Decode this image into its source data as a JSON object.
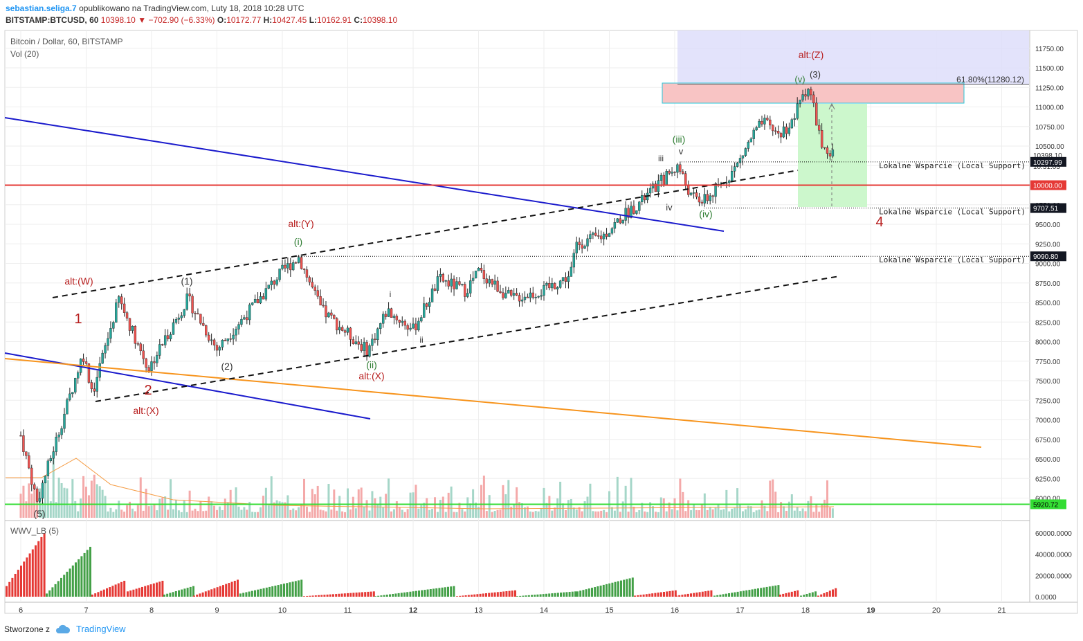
{
  "header": {
    "line1_user": "sebastian.seliga.7",
    "line1_rest": "opublikowano na TradingView.com, Luty 18, 2018 10:28 UTC",
    "symbol": "BITSTAMP:BTCUSD, 60",
    "last": "10398.10",
    "change": "−702.90 (−6.33%)",
    "open_label": "O:",
    "open": "10172.77",
    "high_label": "H:",
    "high": "10427.45",
    "low_label": "L:",
    "low": "10162.91",
    "close_label": "C:",
    "close": "10398.10"
  },
  "pane": {
    "title": "Bitcoin / Dollar, 60, BITSTAMP",
    "vol": "Vol (20)",
    "wwv": "WWV_LB (5)"
  },
  "footer": {
    "created": "Stworzone z",
    "brand": "TradingView"
  },
  "chart_data": {
    "type": "candlestick",
    "price_axis": [
      "11750.00",
      "11500.00",
      "11250.00",
      "11000.00",
      "10750.00",
      "10500.00",
      "10250.00",
      "10000.00",
      "9750.00",
      "9500.00",
      "9250.00",
      "9000.00",
      "8750.00",
      "8500.00",
      "8250.00",
      "8000.00",
      "7750.00",
      "7500.00",
      "7250.00",
      "7000.00",
      "6750.00",
      "6500.00",
      "6250.00",
      "6000.00"
    ],
    "ylim": [
      5900,
      12000
    ],
    "x_ticks": [
      "6",
      "7",
      "8",
      "9",
      "10",
      "11",
      "12",
      "13",
      "14",
      "15",
      "16",
      "17",
      "18",
      "19",
      "20",
      "21"
    ],
    "price_badges": [
      {
        "value": "10398.10",
        "style": "outline"
      },
      {
        "value": "10:31:03",
        "style": "outline"
      },
      {
        "value": "10297.99",
        "style": "dark"
      },
      {
        "value": "10000.00",
        "style": "red"
      },
      {
        "value": "9707.51",
        "style": "dark"
      },
      {
        "value": "9090.80",
        "style": "dark"
      },
      {
        "value": "5920.72",
        "style": "green"
      }
    ],
    "horizontal_levels": [
      {
        "value": 10000,
        "color": "#e53935",
        "kind": "solid"
      },
      {
        "value": 5920.72,
        "color": "#33dd33",
        "kind": "solid"
      },
      {
        "value": 10297.99,
        "color": "#000000",
        "kind": "dotted"
      },
      {
        "value": 9707.51,
        "color": "#000000",
        "kind": "dotted"
      },
      {
        "value": 9090.8,
        "color": "#000000",
        "kind": "dotted"
      }
    ],
    "support_labels": [
      "Lokalne Wsparcie (Local Support)",
      "Lokalne Wsparcie (Local Support)",
      "Lokalne Wsparcie (Local Support)"
    ],
    "fib_label": "61.80%(11280.12)",
    "wave_labels": [
      {
        "text": "(5)",
        "color": "#333333"
      },
      {
        "text": "1",
        "color": "#b71c1c"
      },
      {
        "text": "alt:(W)",
        "color": "#b71c1c"
      },
      {
        "text": "2",
        "color": "#b71c1c"
      },
      {
        "text": "alt:(X)",
        "color": "#b71c1c"
      },
      {
        "text": "(1)",
        "color": "#333333"
      },
      {
        "text": "(2)",
        "color": "#333333"
      },
      {
        "text": "alt:(Y)",
        "color": "#b71c1c"
      },
      {
        "text": "(i)",
        "color": "#2e7d32"
      },
      {
        "text": "(ii)",
        "color": "#2e7d32"
      },
      {
        "text": "alt:(X)",
        "color": "#b71c1c"
      },
      {
        "text": "i",
        "color": "#333333"
      },
      {
        "text": "ii",
        "color": "#333333"
      },
      {
        "text": "iii",
        "color": "#333333"
      },
      {
        "text": "(iii)",
        "color": "#2e7d32"
      },
      {
        "text": "v",
        "color": "#333333"
      },
      {
        "text": "iv",
        "color": "#333333"
      },
      {
        "text": "(iv)",
        "color": "#2e7d32"
      },
      {
        "text": "alt:(Z)",
        "color": "#b71c1c"
      },
      {
        "text": "(v)",
        "color": "#2e7d32"
      },
      {
        "text": "(3)",
        "color": "#333333"
      },
      {
        "text": "4",
        "color": "#b71c1c"
      }
    ],
    "wwv_axis": [
      "60000.0000",
      "40000.0000",
      "20000.0000",
      "0.0000"
    ],
    "colors": {
      "up": "#26a69a",
      "down": "#ef5350",
      "wick": "#222222",
      "vol_up": "#a5d6c8",
      "vol_down": "#f4a9a9",
      "wwv_up": "#43a047",
      "wwv_down": "#e53935"
    }
  }
}
